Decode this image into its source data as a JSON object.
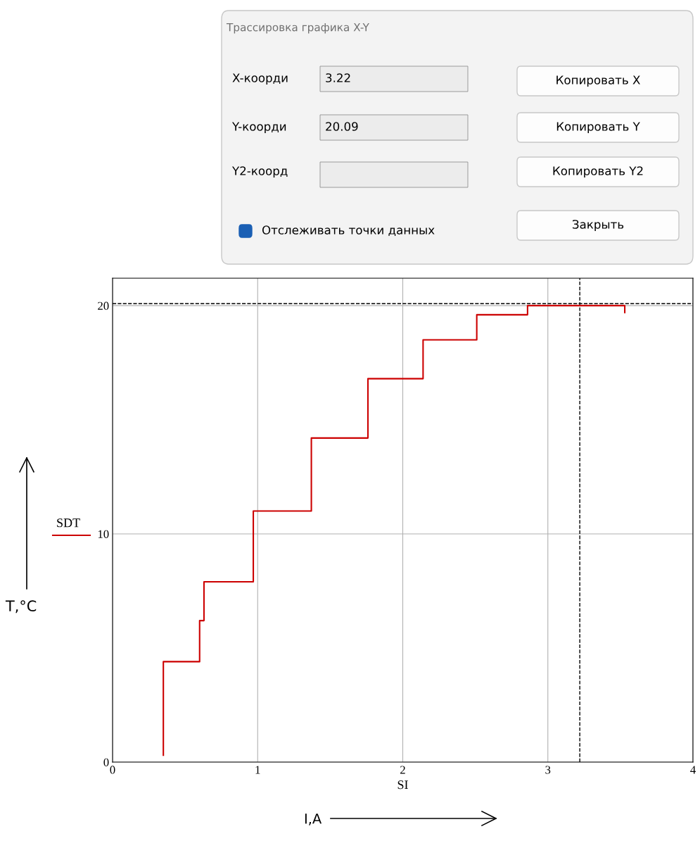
{
  "chart_data": {
    "type": "line",
    "xlabel": "SI",
    "xlim": [
      0,
      4
    ],
    "ylim": [
      0,
      21.2
    ],
    "xticks": [
      0,
      1,
      2,
      3,
      4
    ],
    "yticks": [
      0,
      10,
      20
    ],
    "grid": true,
    "legend": "left",
    "marker": "none",
    "line_style": "solid",
    "series": [
      {
        "name": "SDT",
        "color": "#cc0000",
        "x": [
          0.35,
          0.35,
          0.6,
          0.6,
          0.63,
          0.63,
          0.97,
          0.97,
          1.37,
          1.37,
          1.76,
          1.76,
          2.14,
          2.14,
          2.51,
          2.51,
          2.86,
          2.86,
          3.53,
          3.53
        ],
        "values": [
          0.3,
          4.4,
          4.4,
          6.2,
          6.2,
          7.9,
          7.9,
          11.0,
          11.0,
          14.2,
          14.2,
          16.8,
          16.8,
          18.5,
          18.5,
          19.6,
          19.6,
          20.0,
          20.0,
          19.7
        ]
      }
    ],
    "ref_lines": [
      {
        "axis": "x",
        "value": 3.22,
        "color": "#000000",
        "line_style": "dashed"
      },
      {
        "axis": "y",
        "value": 20.09,
        "color": "#000000",
        "line_style": "dashed"
      }
    ],
    "annotations": [
      "Трассировка графика X-Y",
      "X-коорди",
      "3.22",
      "Копировать X",
      "Y-коорди",
      "20.09",
      "Копировать Y",
      "Y2-коорд",
      "Копировать Y2",
      "Отслеживать точки данных",
      "Закрыть",
      "T,°C",
      "I,A"
    ]
  }
}
